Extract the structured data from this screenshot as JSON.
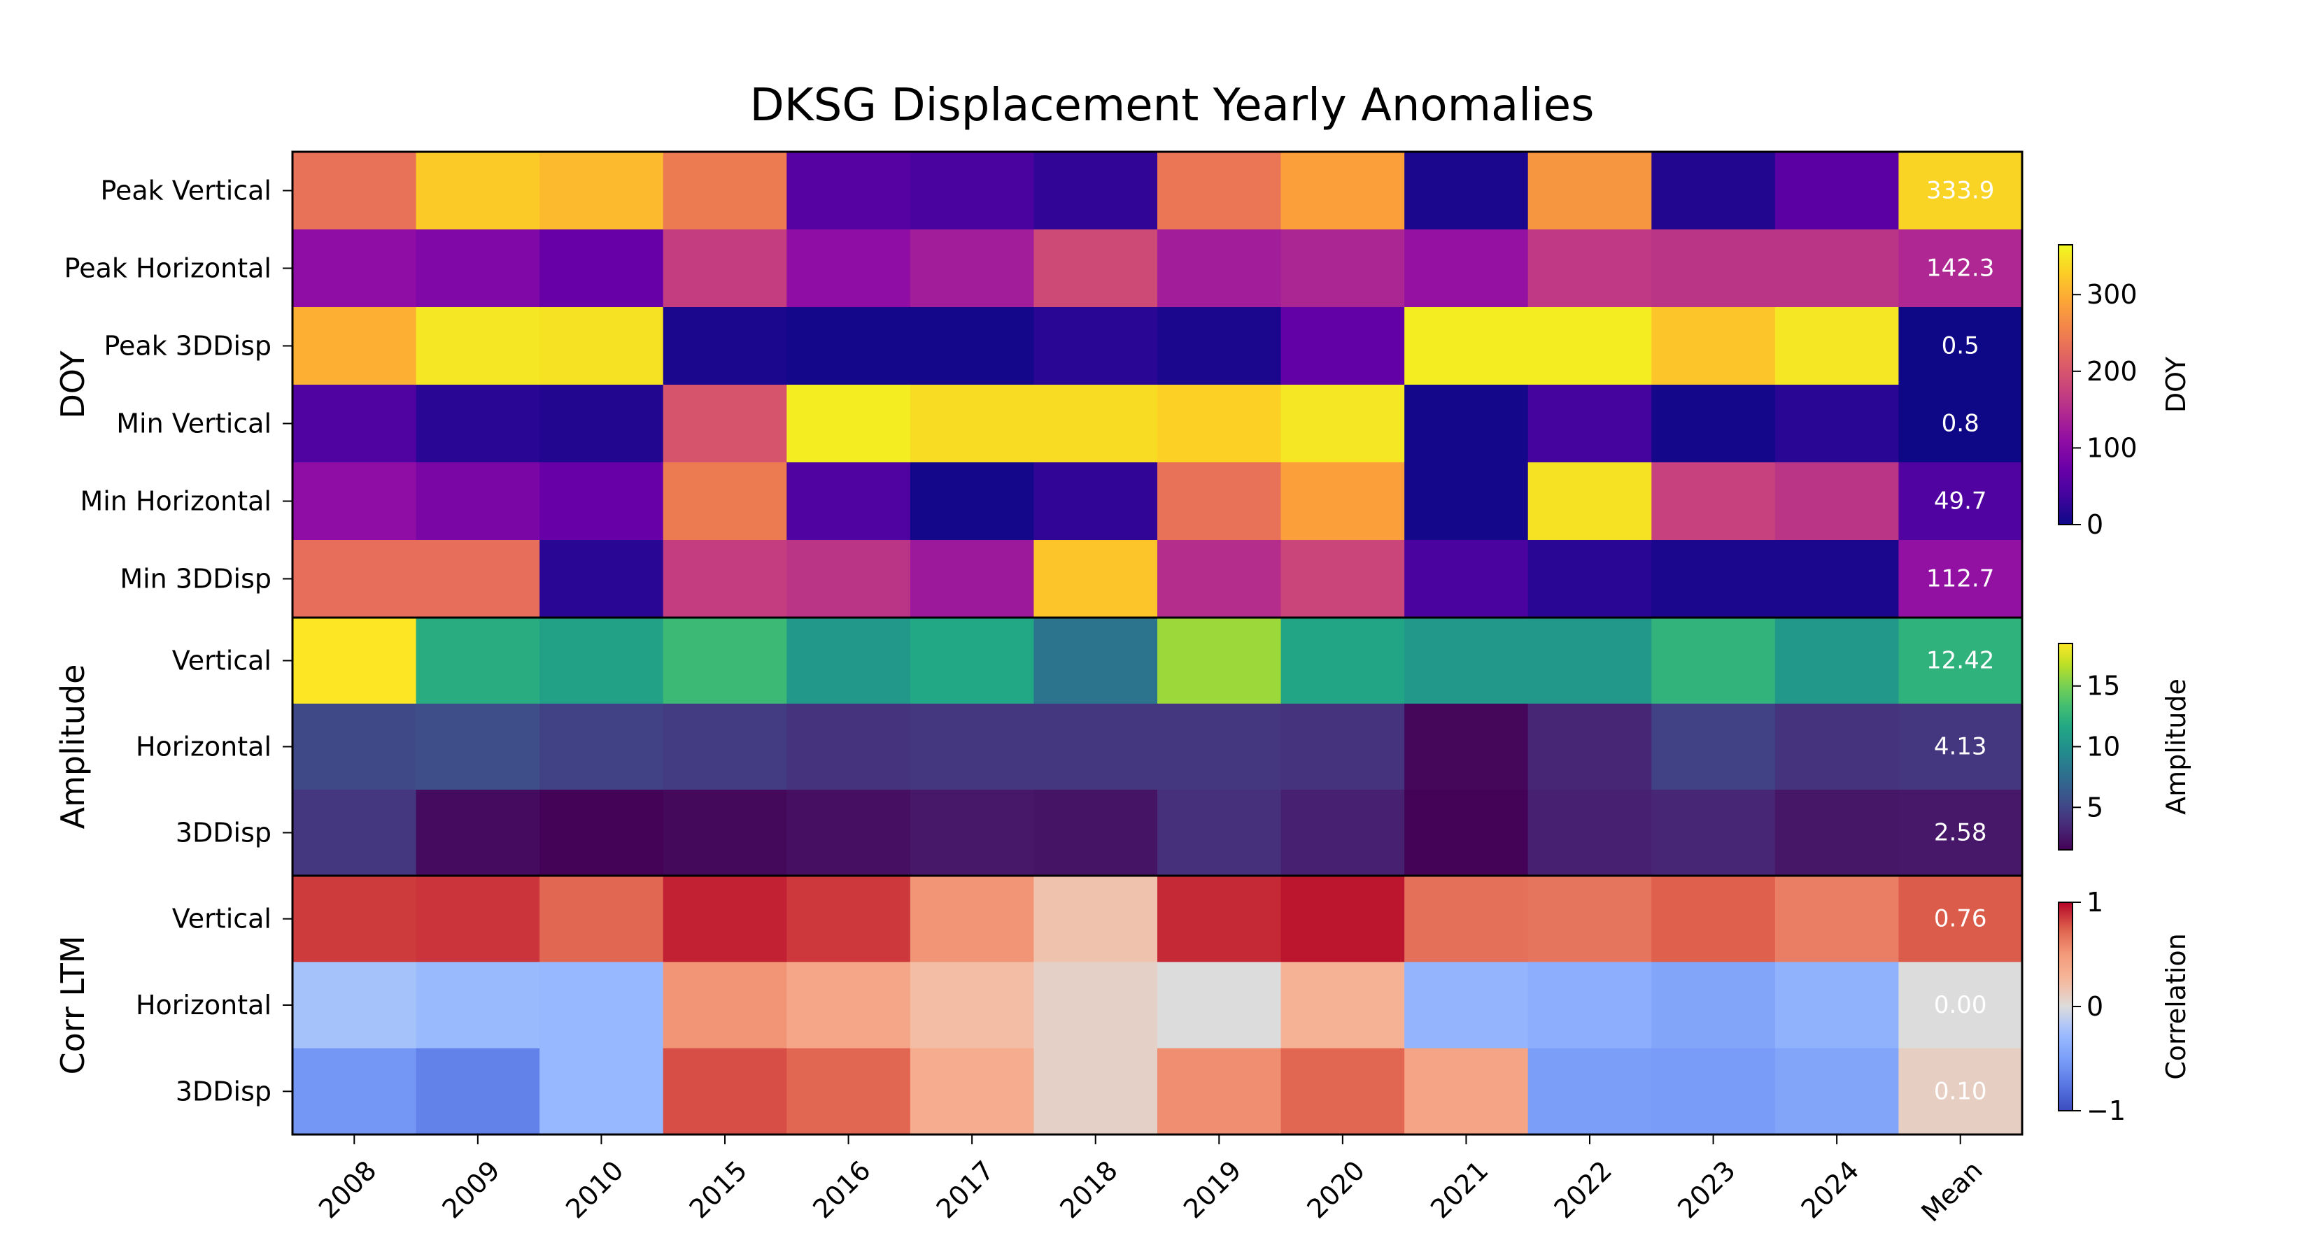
{
  "chart_data": {
    "type": "heatmap",
    "title": "DKSG Displacement Yearly Anomalies",
    "columns": [
      "2008",
      "2009",
      "2010",
      "2015",
      "2016",
      "2017",
      "2018",
      "2019",
      "2020",
      "2021",
      "2022",
      "2023",
      "2024",
      "Mean"
    ],
    "panels": [
      {
        "id": "doy",
        "ylabel": "DOY",
        "colormap": "plasma",
        "vmin": 0,
        "vmax": 365,
        "colorbar": {
          "label": "DOY",
          "ticks": [
            0,
            100,
            200,
            300
          ],
          "tick_labels": [
            "0",
            "100",
            "200",
            "300"
          ]
        },
        "rows": [
          {
            "label": "Peak Vertical",
            "values": [
              235,
              325,
              310,
              245,
              55,
              45,
              25,
              240,
              285,
              10,
              275,
              15,
              60,
              333.9
            ],
            "mean_label": "333.9"
          },
          {
            "label": "Peak Horizontal",
            "values": [
              110,
              95,
              70,
              170,
              110,
              130,
              185,
              130,
              140,
              115,
              165,
              160,
              160,
              142.3
            ],
            "mean_label": "142.3"
          },
          {
            "label": "Peak 3DDisp",
            "values": [
              300,
              350,
              345,
              10,
              5,
              5,
              20,
              10,
              65,
              355,
              355,
              320,
              350,
              0.5
            ],
            "mean_label": "0.5"
          },
          {
            "label": "Min Vertical",
            "values": [
              50,
              20,
              15,
              200,
              355,
              340,
              340,
              330,
              350,
              5,
              40,
              5,
              20,
              0.8
            ],
            "mean_label": "0.8"
          },
          {
            "label": "Min Horizontal",
            "values": [
              110,
              90,
              70,
              245,
              50,
              5,
              25,
              235,
              285,
              5,
              345,
              175,
              160,
              49.7
            ],
            "mean_label": "49.7"
          },
          {
            "label": "Min 3DDisp",
            "values": [
              230,
              230,
              20,
              170,
              160,
              125,
              320,
              150,
              180,
              45,
              20,
              10,
              10,
              112.7
            ],
            "mean_label": "112.7"
          }
        ]
      },
      {
        "id": "amplitude",
        "ylabel": "Amplitude",
        "colormap": "viridis",
        "vmin": 1.5,
        "vmax": 18.5,
        "colorbar": {
          "label": "Amplitude",
          "ticks": [
            5,
            10,
            15
          ],
          "tick_labels": [
            "5",
            "10",
            "15"
          ]
        },
        "rows": [
          {
            "label": "Vertical",
            "values": [
              18.5,
              12.0,
              11.2,
              13.0,
              10.5,
              11.7,
              8.0,
              16.0,
              11.5,
              10.5,
              10.5,
              12.5,
              10.5,
              12.42
            ],
            "mean_label": "12.42"
          },
          {
            "label": "Horizontal",
            "values": [
              5.2,
              5.5,
              4.8,
              4.5,
              4.0,
              4.2,
              4.2,
              4.2,
              4.0,
              1.8,
              3.3,
              4.8,
              4.0,
              4.13
            ],
            "mean_label": "4.13"
          },
          {
            "label": "3DDisp",
            "values": [
              4.2,
              2.0,
              1.6,
              1.9,
              2.2,
              2.6,
              2.4,
              3.8,
              3.0,
              1.6,
              3.0,
              3.3,
              2.5,
              2.58
            ],
            "mean_label": "2.58"
          }
        ]
      },
      {
        "id": "corr",
        "ylabel": "Corr LTM",
        "colormap": "coolwarm",
        "vmin": -1,
        "vmax": 1,
        "colorbar": {
          "label": "Correlation",
          "ticks": [
            -1,
            0,
            1
          ],
          "tick_labels": [
            "−1",
            "0",
            "1"
          ]
        },
        "rows": [
          {
            "label": "Vertical",
            "values": [
              0.85,
              0.87,
              0.72,
              0.92,
              0.86,
              0.52,
              0.18,
              0.9,
              0.95,
              0.68,
              0.66,
              0.75,
              0.62,
              0.76
            ],
            "mean_label": "0.76"
          },
          {
            "label": "Horizontal",
            "values": [
              -0.22,
              -0.28,
              -0.3,
              0.52,
              0.4,
              0.22,
              0.08,
              0.0,
              0.3,
              -0.32,
              -0.38,
              -0.45,
              -0.35,
              0.0
            ],
            "mean_label": "0.00"
          },
          {
            "label": "3DDisp",
            "values": [
              -0.55,
              -0.68,
              -0.3,
              0.8,
              0.72,
              0.35,
              0.08,
              0.55,
              0.72,
              0.42,
              -0.5,
              -0.52,
              -0.45,
              0.1
            ],
            "mean_label": "0.10"
          }
        ]
      }
    ]
  }
}
